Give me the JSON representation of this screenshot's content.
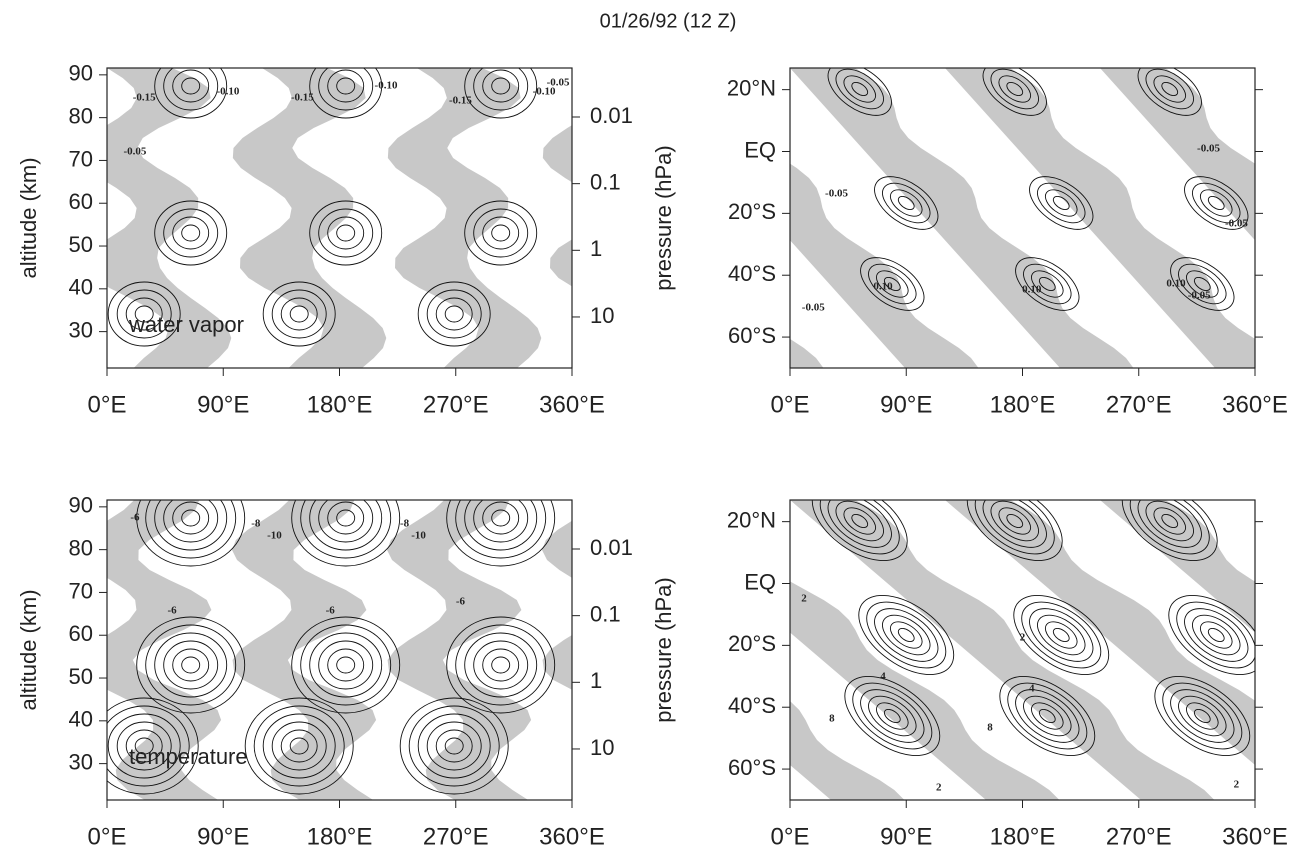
{
  "title": "01/26/92 (12 Z)",
  "chart_data": [
    {
      "type": "contour",
      "annotation": "water vapor",
      "ylabel": "altitude (km)",
      "y2label": "pressure (hPa)",
      "xlim": [
        0,
        360
      ],
      "xticks": [
        {
          "value": 0,
          "label": "0°E"
        },
        {
          "value": 90,
          "label": "90°E"
        },
        {
          "value": 180,
          "label": "180°E"
        },
        {
          "value": 270,
          "label": "270°E"
        },
        {
          "value": 360,
          "label": "360°E"
        }
      ],
      "ylim": [
        21.5,
        91.6
      ],
      "yticks": [
        30,
        40,
        50,
        60,
        70,
        80,
        90
      ],
      "y2lim": [
        58.3,
        0.00184
      ],
      "y2scale": "log",
      "y2ticks": [
        0.01,
        0.1,
        1,
        10
      ],
      "contour_labels": [
        "-0.15",
        "-0.10",
        "-0.15",
        "-0.10",
        "-0.15",
        "-0.10",
        "-0.05",
        "-0.05"
      ]
    },
    {
      "type": "contour",
      "xlim": [
        0,
        360
      ],
      "xticks": [
        {
          "value": 0,
          "label": "0°E"
        },
        {
          "value": 90,
          "label": "90°E"
        },
        {
          "value": 180,
          "label": "180°E"
        },
        {
          "value": 270,
          "label": "270°E"
        },
        {
          "value": 360,
          "label": "360°E"
        }
      ],
      "ylim": [
        -70,
        27
      ],
      "yticks": [
        {
          "value": 20,
          "label": "20°N"
        },
        {
          "value": 0,
          "label": "EQ"
        },
        {
          "value": -20,
          "label": "20°S"
        },
        {
          "value": -40,
          "label": "40°S"
        },
        {
          "value": -60,
          "label": "60°S"
        }
      ],
      "contour_labels": [
        "-0.05",
        "-0.05",
        "-0.05",
        "-0.05",
        "0.10",
        "0.10",
        "0.10",
        "-0.05"
      ]
    },
    {
      "type": "contour",
      "annotation": "temperature",
      "ylabel": "altitude (km)",
      "y2label": "pressure (hPa)",
      "xlim": [
        0,
        360
      ],
      "xticks": [
        {
          "value": 0,
          "label": "0°E"
        },
        {
          "value": 90,
          "label": "90°E"
        },
        {
          "value": 180,
          "label": "180°E"
        },
        {
          "value": 270,
          "label": "270°E"
        },
        {
          "value": 360,
          "label": "360°E"
        }
      ],
      "ylim": [
        21.5,
        91.6
      ],
      "yticks": [
        30,
        40,
        50,
        60,
        70,
        80,
        90
      ],
      "y2lim": [
        58.3,
        0.00184
      ],
      "y2scale": "log",
      "y2ticks": [
        0.01,
        0.1,
        1,
        10
      ],
      "contour_labels": [
        "-6",
        "-8",
        "-10",
        "-8",
        "-10",
        "-6",
        "-6",
        "-6"
      ]
    },
    {
      "type": "contour",
      "xlim": [
        0,
        360
      ],
      "xticks": [
        {
          "value": 0,
          "label": "0°E"
        },
        {
          "value": 90,
          "label": "90°E"
        },
        {
          "value": 180,
          "label": "180°E"
        },
        {
          "value": 270,
          "label": "270°E"
        },
        {
          "value": 360,
          "label": "360°E"
        }
      ],
      "ylim": [
        -70,
        27
      ],
      "yticks": [
        {
          "value": 20,
          "label": "20°N"
        },
        {
          "value": 0,
          "label": "EQ"
        },
        {
          "value": -20,
          "label": "20°S"
        },
        {
          "value": -40,
          "label": "40°S"
        },
        {
          "value": -60,
          "label": "60°S"
        }
      ],
      "contour_labels": [
        "2",
        "2",
        "4",
        "4",
        "8",
        "8",
        "2",
        "2"
      ]
    }
  ]
}
